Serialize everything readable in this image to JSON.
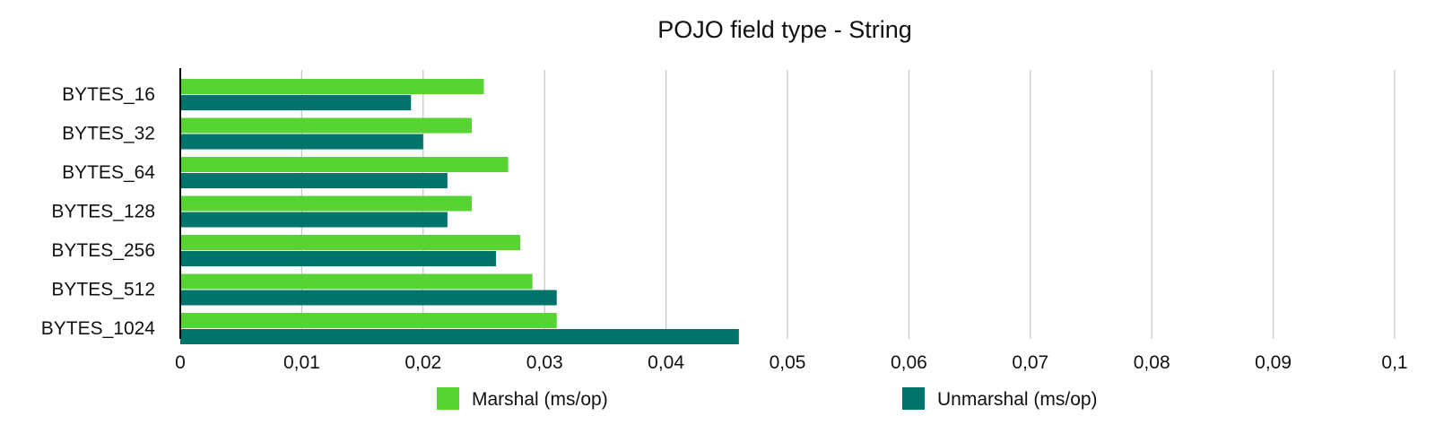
{
  "chart_data": {
    "type": "bar",
    "orientation": "horizontal",
    "title": "POJO field type - String",
    "xlabel": "",
    "ylabel": "",
    "categories": [
      "BYTES_16",
      "BYTES_32",
      "BYTES_64",
      "BYTES_128",
      "BYTES_256",
      "BYTES_512",
      "BYTES_1024"
    ],
    "series": [
      {
        "name": "Marshal (ms/op)",
        "color": "#58d334",
        "values": [
          0.025,
          0.024,
          0.027,
          0.024,
          0.028,
          0.029,
          0.031
        ]
      },
      {
        "name": "Unmarshal (ms/op)",
        "color": "#00736a",
        "values": [
          0.019,
          0.02,
          0.022,
          0.022,
          0.026,
          0.031,
          0.046
        ]
      }
    ],
    "xlim": [
      0,
      0.1
    ],
    "xticks": [
      0,
      0.01,
      0.02,
      0.03,
      0.04,
      0.05,
      0.06,
      0.07,
      0.08,
      0.09,
      0.1
    ],
    "xtick_labels": [
      "0",
      "0,01",
      "0,02",
      "0,03",
      "0,04",
      "0,05",
      "0,06",
      "0,07",
      "0,08",
      "0,09",
      "0,1"
    ],
    "grid": "vertical",
    "legend_position": "bottom"
  }
}
